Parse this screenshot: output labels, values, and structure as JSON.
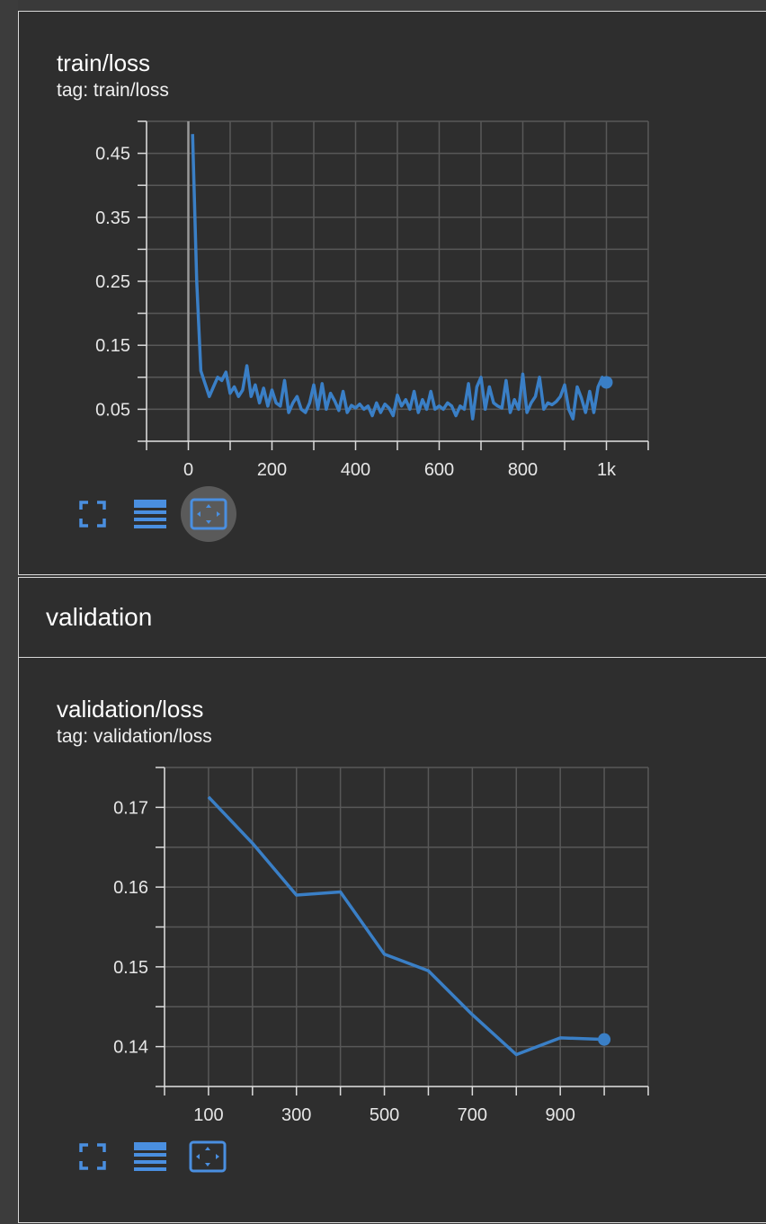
{
  "train_card": {
    "title": "train/loss",
    "tag": "tag: train/loss"
  },
  "section": {
    "title": "validation"
  },
  "validation_card": {
    "title": "validation/loss",
    "tag": "tag: validation/loss"
  },
  "toolbar": {
    "icons": [
      "fullscreen-icon",
      "data-table-icon",
      "fit-domain-icon"
    ]
  },
  "colors": {
    "line": "#3a7fc6",
    "grid": "#585858",
    "axis": "#dcdcdc",
    "icon": "#4a8fe0"
  },
  "chart_data": [
    {
      "type": "line",
      "title": "train/loss",
      "xlim": [
        -100,
        1100
      ],
      "ylim": [
        0.0,
        0.5
      ],
      "xticks": [
        0,
        200,
        400,
        600,
        800,
        1000
      ],
      "xtick_labels": [
        "0",
        "200",
        "400",
        "600",
        "800",
        "1k"
      ],
      "yticks": [
        0.05,
        0.15,
        0.25,
        0.35,
        0.45
      ],
      "ytick_labels": [
        "0.05",
        "0.15",
        "0.25",
        "0.35",
        "0.45"
      ],
      "grid": true,
      "series": [
        {
          "x": [
            10,
            20,
            30,
            40,
            50,
            60,
            70,
            80,
            90,
            100,
            110,
            120,
            130,
            140,
            150,
            160,
            170,
            180,
            190,
            200,
            210,
            220,
            230,
            240,
            250,
            260,
            270,
            280,
            290,
            300,
            310,
            320,
            330,
            340,
            350,
            360,
            370,
            380,
            390,
            400,
            410,
            420,
            430,
            440,
            450,
            460,
            470,
            480,
            490,
            500,
            510,
            520,
            530,
            540,
            550,
            560,
            570,
            580,
            590,
            600,
            610,
            620,
            630,
            640,
            650,
            660,
            670,
            680,
            690,
            700,
            710,
            720,
            730,
            740,
            750,
            760,
            770,
            780,
            790,
            800,
            810,
            820,
            830,
            840,
            850,
            860,
            870,
            880,
            890,
            900,
            910,
            920,
            930,
            940,
            950,
            960,
            970,
            980,
            990,
            1000
          ],
          "y": [
            0.48,
            0.25,
            0.11,
            0.09,
            0.07,
            0.085,
            0.1,
            0.095,
            0.108,
            0.075,
            0.085,
            0.07,
            0.08,
            0.118,
            0.07,
            0.088,
            0.06,
            0.083,
            0.055,
            0.08,
            0.06,
            0.055,
            0.095,
            0.045,
            0.06,
            0.07,
            0.05,
            0.045,
            0.06,
            0.088,
            0.05,
            0.09,
            0.05,
            0.075,
            0.063,
            0.048,
            0.078,
            0.045,
            0.056,
            0.052,
            0.058,
            0.05,
            0.055,
            0.04,
            0.06,
            0.045,
            0.058,
            0.052,
            0.04,
            0.072,
            0.055,
            0.065,
            0.05,
            0.078,
            0.045,
            0.065,
            0.05,
            0.078,
            0.05,
            0.055,
            0.05,
            0.06,
            0.055,
            0.04,
            0.055,
            0.05,
            0.09,
            0.035,
            0.085,
            0.1,
            0.05,
            0.085,
            0.06,
            0.055,
            0.052,
            0.095,
            0.045,
            0.065,
            0.05,
            0.105,
            0.045,
            0.06,
            0.07,
            0.1,
            0.05,
            0.06,
            0.057,
            0.062,
            0.07,
            0.088,
            0.05,
            0.035,
            0.085,
            0.068,
            0.045,
            0.078,
            0.045,
            0.085,
            0.1,
            0.092
          ]
        }
      ]
    },
    {
      "type": "line",
      "title": "validation/loss",
      "xlim": [
        0,
        1100
      ],
      "ylim": [
        0.135,
        0.175
      ],
      "xticks": [
        100,
        300,
        500,
        700,
        900
      ],
      "xtick_labels": [
        "100",
        "300",
        "500",
        "700",
        "900"
      ],
      "yticks": [
        0.14,
        0.15,
        0.16,
        0.17
      ],
      "ytick_labels": [
        "0.14",
        "0.15",
        "0.16",
        "0.17"
      ],
      "grid": true,
      "series": [
        {
          "x": [
            100,
            200,
            300,
            400,
            500,
            600,
            700,
            800,
            900,
            1000
          ],
          "y": [
            0.1713,
            0.1655,
            0.159,
            0.1594,
            0.1516,
            0.1495,
            0.144,
            0.139,
            0.1411,
            0.1409
          ]
        }
      ]
    }
  ]
}
